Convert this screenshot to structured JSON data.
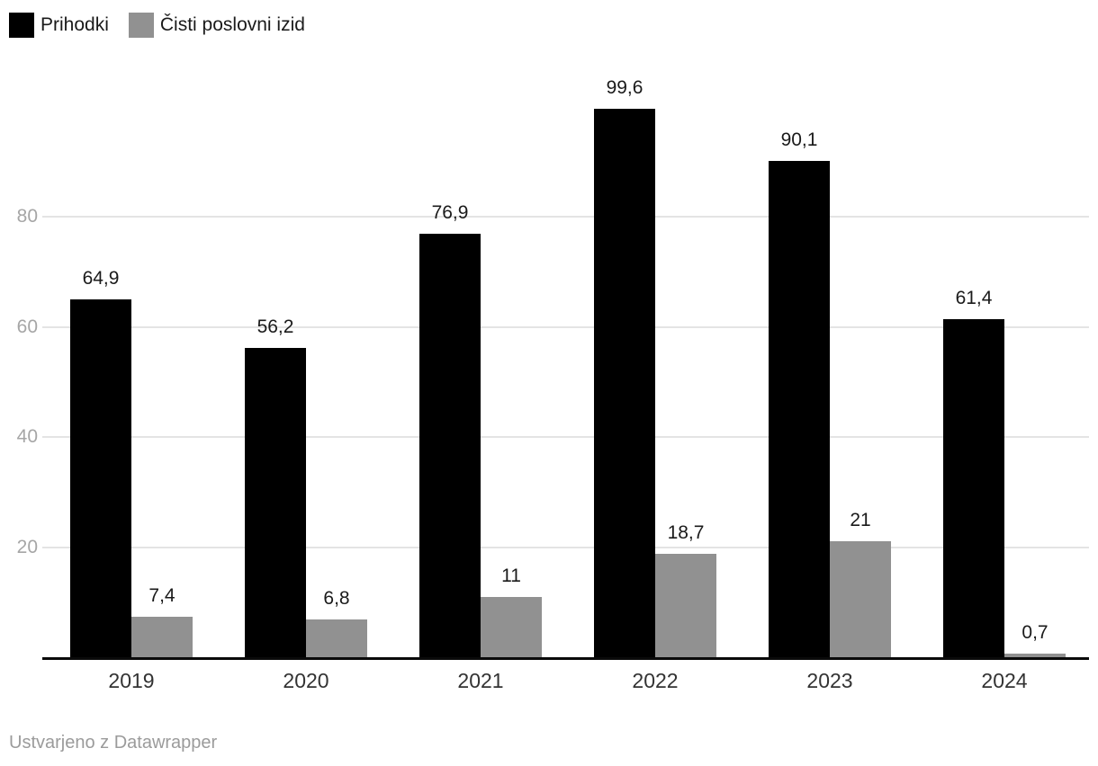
{
  "chart_data": {
    "type": "bar",
    "title": "",
    "categories": [
      "2019",
      "2020",
      "2021",
      "2022",
      "2023",
      "2024"
    ],
    "series": [
      {
        "name": "Prihodki",
        "color": "#000000",
        "values": [
          64.9,
          56.2,
          76.9,
          99.6,
          90.1,
          61.4
        ],
        "labels": [
          "64,9",
          "56,2",
          "76,9",
          "99,6",
          "90,1",
          "61,4"
        ]
      },
      {
        "name": "Čisti poslovni izid",
        "color": "#919191",
        "values": [
          7.4,
          6.8,
          11,
          18.7,
          21,
          0.7
        ],
        "labels": [
          "7,4",
          "6,8",
          "11",
          "18,7",
          "21",
          "0,7"
        ]
      }
    ],
    "y_axis": {
      "ticks": [
        20,
        40,
        60,
        80
      ],
      "tick_labels": [
        "20",
        "40",
        "60",
        "80"
      ],
      "ylim": [
        0,
        100
      ],
      "grid": true
    },
    "legend_position": "top-left"
  },
  "footer": {
    "credit": "Ustvarjeno z Datawrapper"
  },
  "colors": {
    "background": "#ffffff",
    "grid": "#e4e4e4",
    "axis": "#0a0a0a",
    "tick_label": "#a6a6a6",
    "category_label": "#333333",
    "value_label": "#1a1a1a",
    "footer": "#9b9b9b"
  }
}
